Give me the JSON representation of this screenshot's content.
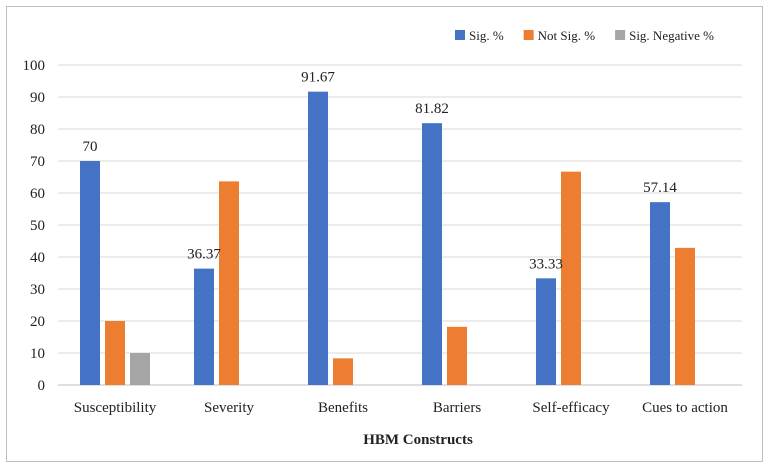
{
  "chart_data": {
    "type": "bar",
    "title": "",
    "xlabel": "HBM Constructs",
    "ylabel": "",
    "ylim": [
      0,
      100
    ],
    "ytick_step": 10,
    "grid": true,
    "legend_position": "top-right",
    "categories": [
      "Susceptibility",
      "Severity",
      "Benefits",
      "Barriers",
      "Self-efficacy",
      "Cues to action"
    ],
    "series": [
      {
        "name": "Sig. %",
        "color": "#4472C4",
        "values": [
          70,
          36.37,
          91.67,
          81.82,
          33.33,
          57.14
        ]
      },
      {
        "name": "Not Sig. %",
        "color": "#ED7D31",
        "values": [
          20,
          63.63,
          8.33,
          18.18,
          66.67,
          42.86
        ]
      },
      {
        "name": "Sig. Negative %",
        "color": "#A5A5A5",
        "values": [
          10,
          0,
          0,
          0,
          0,
          0
        ]
      }
    ],
    "data_labels": [
      {
        "series": 0,
        "index": 0,
        "text": "70"
      },
      {
        "series": 0,
        "index": 1,
        "text": "36.37"
      },
      {
        "series": 0,
        "index": 2,
        "text": "91.67"
      },
      {
        "series": 0,
        "index": 3,
        "text": "81.82"
      },
      {
        "series": 0,
        "index": 4,
        "text": "33.33"
      },
      {
        "series": 0,
        "index": 5,
        "text": "57.14"
      }
    ]
  }
}
